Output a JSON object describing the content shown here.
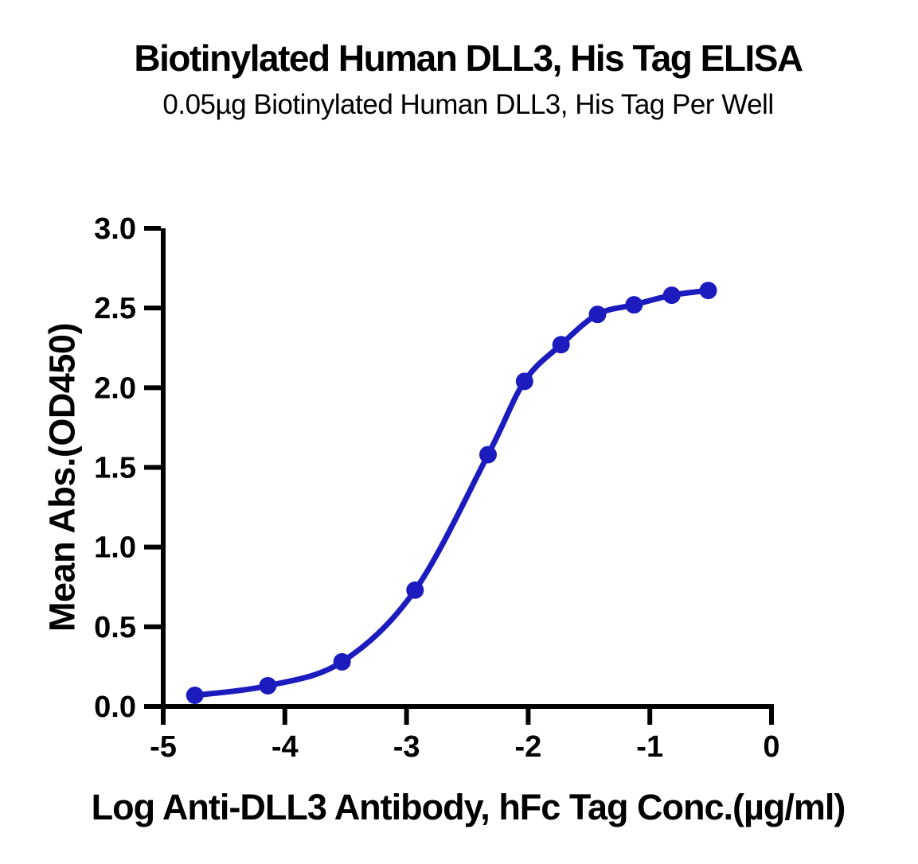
{
  "page": {
    "background": "#ffffff",
    "text_color": "#000000"
  },
  "chart_data": {
    "type": "line",
    "title": "Biotinylated Human DLL3, His Tag ELISA",
    "subtitle": "0.05µg Biotinylated Human DLL3, His Tag Per Well",
    "xlabel": "Log Anti-DLL3 Antibody, hFc Tag Conc.(µg/ml)",
    "ylabel": "Mean Abs.(OD450)",
    "xlim": [
      -5,
      0
    ],
    "ylim": [
      0,
      3
    ],
    "grid": false,
    "legend": false,
    "axis_color": "#000000",
    "xticks": {
      "values": [
        -5,
        -4,
        -3,
        -2,
        -1,
        0
      ],
      "labels": [
        "-5",
        "-4",
        "-3",
        "-2",
        "-1",
        "0"
      ]
    },
    "yticks": {
      "values": [
        0,
        0.5,
        1,
        1.5,
        2,
        2.5,
        3
      ],
      "labels": [
        "0.0",
        "0.5",
        "1.0",
        "1.5",
        "2.0",
        "2.5",
        "3.0"
      ]
    },
    "series": [
      {
        "x": [
          -4.74,
          -4.14,
          -3.53,
          -2.93,
          -2.33,
          -2.03,
          -1.73,
          -1.43,
          -1.13,
          -0.82,
          -0.52
        ],
        "y": [
          0.07,
          0.13,
          0.28,
          0.73,
          1.58,
          2.04,
          2.27,
          2.46,
          2.52,
          2.58,
          2.61
        ],
        "color": "#1C1CBE",
        "marker": "circle",
        "curve": "sigmoid"
      }
    ]
  }
}
